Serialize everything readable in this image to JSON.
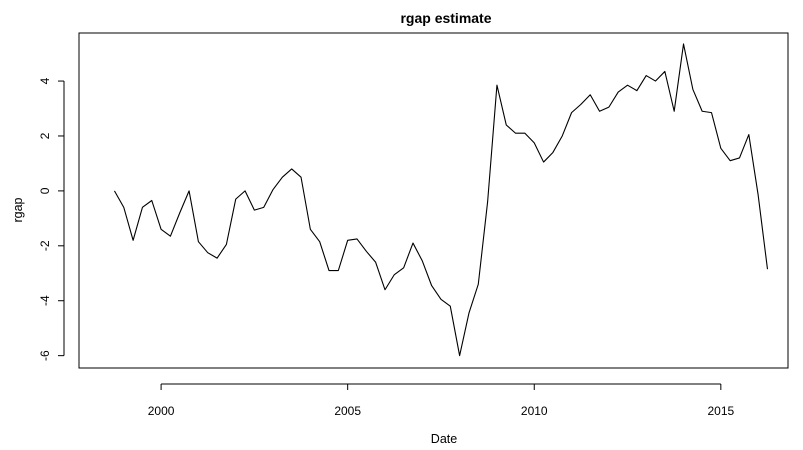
{
  "chart_data": {
    "type": "line",
    "title": "rgap estimate",
    "xlabel": "Date",
    "ylabel": "rgap",
    "xlim": [
      1997.8,
      2016.8
    ],
    "ylim": [
      -6.45,
      5.75
    ],
    "grid": false,
    "legend": "none",
    "x_ticks": [
      {
        "value": 2000,
        "label": "2000"
      },
      {
        "value": 2005,
        "label": "2005"
      },
      {
        "value": 2010,
        "label": "2010"
      },
      {
        "value": 2015,
        "label": "2015"
      }
    ],
    "y_ticks": [
      {
        "value": -6,
        "label": "-6"
      },
      {
        "value": -4,
        "label": "-4"
      },
      {
        "value": -2,
        "label": "-2"
      },
      {
        "value": 0,
        "label": "0"
      },
      {
        "value": 2,
        "label": "2"
      },
      {
        "value": 4,
        "label": "4"
      }
    ],
    "series": [
      {
        "color": "#000000",
        "x": [
          1998.75,
          1999.0,
          1999.25,
          1999.5,
          1999.75,
          2000.0,
          2000.25,
          2000.5,
          2000.75,
          2001.0,
          2001.25,
          2001.5,
          2001.75,
          2002.0,
          2002.25,
          2002.5,
          2002.75,
          2003.0,
          2003.25,
          2003.5,
          2003.75,
          2004.0,
          2004.25,
          2004.5,
          2004.75,
          2005.0,
          2005.25,
          2005.5,
          2005.75,
          2006.0,
          2006.25,
          2006.5,
          2006.75,
          2007.0,
          2007.25,
          2007.5,
          2007.75,
          2008.0,
          2008.25,
          2008.5,
          2008.75,
          2009.0,
          2009.25,
          2009.5,
          2009.75,
          2010.0,
          2010.25,
          2010.5,
          2010.75,
          2011.0,
          2011.25,
          2011.5,
          2011.75,
          2012.0,
          2012.25,
          2012.5,
          2012.75,
          2013.0,
          2013.25,
          2013.5,
          2013.75,
          2014.0,
          2014.25,
          2014.5,
          2014.75,
          2015.0,
          2015.25,
          2015.5,
          2015.75,
          2016.0,
          2016.25
        ],
        "y": [
          0.0,
          -0.6,
          -1.8,
          -0.6,
          -0.35,
          -1.4,
          -1.65,
          -0.8,
          0.0,
          -1.85,
          -2.25,
          -2.45,
          -1.95,
          -0.3,
          0.0,
          -0.7,
          -0.6,
          0.05,
          0.5,
          0.8,
          0.5,
          -1.4,
          -1.85,
          -2.9,
          -2.9,
          -1.8,
          -1.75,
          -2.2,
          -2.6,
          -3.6,
          -3.05,
          -2.8,
          -1.9,
          -2.55,
          -3.45,
          -3.95,
          -4.2,
          -6.0,
          -4.45,
          -3.4,
          -0.4,
          3.85,
          2.4,
          2.1,
          2.1,
          1.75,
          1.05,
          1.4,
          2.0,
          2.85,
          3.15,
          3.5,
          2.9,
          3.05,
          3.6,
          3.85,
          3.65,
          4.2,
          4.0,
          4.35,
          2.9,
          5.35,
          3.7,
          2.9,
          2.85,
          1.55,
          1.1,
          1.2,
          2.05,
          -0.15,
          -2.85
        ]
      }
    ]
  }
}
